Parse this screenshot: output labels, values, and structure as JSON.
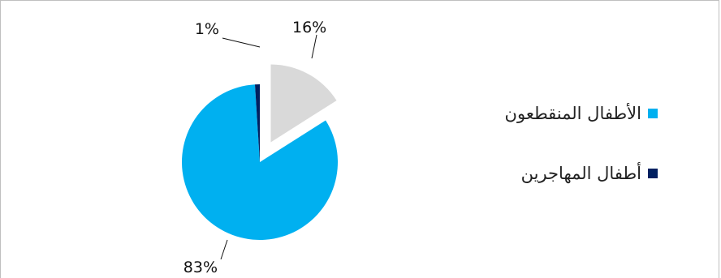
{
  "chart_data": {
    "type": "pie",
    "title": "",
    "slices": [
      {
        "label": "",
        "value": 16,
        "display": "16%",
        "color": "#d9d9d9",
        "exploded": true
      },
      {
        "label": "الأطفال المنقطعون",
        "value": 83,
        "display": "83%",
        "color": "#00b0f0",
        "exploded": false
      },
      {
        "label": "أطفال المهاجرين",
        "value": 1,
        "display": "1%",
        "color": "#002060",
        "exploded": false
      }
    ],
    "legend": {
      "position": "right",
      "entries": [
        {
          "label": "الأطفال المنقطعون",
          "color": "#00b0f0"
        },
        {
          "label": "أطفال المهاجرين",
          "color": "#002060"
        }
      ]
    }
  }
}
